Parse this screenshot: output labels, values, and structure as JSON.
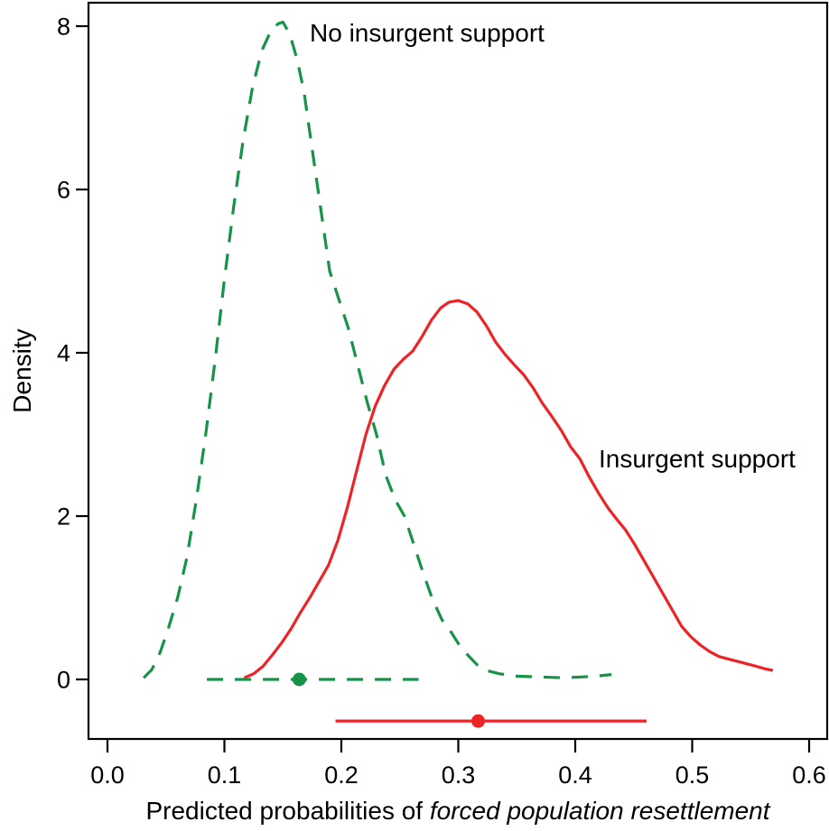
{
  "chart_data": {
    "type": "line",
    "subtype": "kernel-density",
    "title": "",
    "xlabel_prefix": "Predicted probabilities of ",
    "xlabel_italic": "forced population resettlement",
    "ylabel": "Density",
    "xlim": [
      -0.016,
      0.615
    ],
    "ylim": [
      -0.73,
      8.28
    ],
    "grid": false,
    "legend_position": "inline-curve-annotations",
    "x_ticks": [
      0.0,
      0.1,
      0.2,
      0.3,
      0.4,
      0.5,
      0.6
    ],
    "x_tick_labels": [
      "0.0",
      "0.1",
      "0.2",
      "0.3",
      "0.4",
      "0.5",
      "0.6"
    ],
    "y_ticks": [
      0,
      2,
      4,
      6,
      8
    ],
    "y_tick_labels": [
      "0",
      "2",
      "4",
      "6",
      "8"
    ],
    "axis_color": "#000000",
    "series": [
      {
        "name": "No insurgent support",
        "color": "#169347",
        "line_style": "dashed",
        "peak_x": 0.15,
        "peak_density": 8.05,
        "points": [
          [
            0.031,
            0.02
          ],
          [
            0.038,
            0.12
          ],
          [
            0.045,
            0.33
          ],
          [
            0.052,
            0.62
          ],
          [
            0.06,
            1.0
          ],
          [
            0.068,
            1.5
          ],
          [
            0.076,
            2.2
          ],
          [
            0.084,
            3.0
          ],
          [
            0.092,
            3.9
          ],
          [
            0.1,
            4.9
          ],
          [
            0.108,
            5.8
          ],
          [
            0.116,
            6.6
          ],
          [
            0.124,
            7.25
          ],
          [
            0.132,
            7.7
          ],
          [
            0.14,
            7.95
          ],
          [
            0.146,
            8.03
          ],
          [
            0.15,
            8.05
          ],
          [
            0.156,
            7.9
          ],
          [
            0.162,
            7.6
          ],
          [
            0.168,
            7.2
          ],
          [
            0.174,
            6.6
          ],
          [
            0.182,
            5.8
          ],
          [
            0.19,
            5.0
          ],
          [
            0.198,
            4.65
          ],
          [
            0.206,
            4.3
          ],
          [
            0.214,
            3.85
          ],
          [
            0.222,
            3.4
          ],
          [
            0.23,
            3.0
          ],
          [
            0.238,
            2.5
          ],
          [
            0.246,
            2.2
          ],
          [
            0.254,
            2.0
          ],
          [
            0.262,
            1.65
          ],
          [
            0.27,
            1.3
          ],
          [
            0.278,
            0.98
          ],
          [
            0.286,
            0.73
          ],
          [
            0.293,
            0.6
          ],
          [
            0.3,
            0.44
          ],
          [
            0.308,
            0.3
          ],
          [
            0.316,
            0.18
          ],
          [
            0.324,
            0.11
          ],
          [
            0.335,
            0.07
          ],
          [
            0.35,
            0.04
          ],
          [
            0.37,
            0.03
          ],
          [
            0.39,
            0.02
          ],
          [
            0.405,
            0.03
          ],
          [
            0.418,
            0.04
          ],
          [
            0.431,
            0.06
          ]
        ]
      },
      {
        "name": "Insurgent support",
        "color": "#ec2428",
        "line_style": "solid",
        "peak_x": 0.3,
        "peak_density": 4.64,
        "points": [
          [
            0.117,
            0.02
          ],
          [
            0.125,
            0.07
          ],
          [
            0.133,
            0.16
          ],
          [
            0.141,
            0.3
          ],
          [
            0.149,
            0.45
          ],
          [
            0.157,
            0.62
          ],
          [
            0.165,
            0.82
          ],
          [
            0.173,
            1.0
          ],
          [
            0.181,
            1.2
          ],
          [
            0.189,
            1.4
          ],
          [
            0.197,
            1.7
          ],
          [
            0.205,
            2.1
          ],
          [
            0.213,
            2.55
          ],
          [
            0.221,
            3.0
          ],
          [
            0.229,
            3.35
          ],
          [
            0.237,
            3.6
          ],
          [
            0.245,
            3.8
          ],
          [
            0.253,
            3.92
          ],
          [
            0.261,
            4.02
          ],
          [
            0.269,
            4.2
          ],
          [
            0.277,
            4.4
          ],
          [
            0.285,
            4.55
          ],
          [
            0.292,
            4.62
          ],
          [
            0.3,
            4.64
          ],
          [
            0.308,
            4.6
          ],
          [
            0.316,
            4.5
          ],
          [
            0.324,
            4.33
          ],
          [
            0.332,
            4.13
          ],
          [
            0.34,
            3.98
          ],
          [
            0.348,
            3.85
          ],
          [
            0.356,
            3.73
          ],
          [
            0.364,
            3.57
          ],
          [
            0.372,
            3.38
          ],
          [
            0.38,
            3.22
          ],
          [
            0.388,
            3.05
          ],
          [
            0.396,
            2.85
          ],
          [
            0.404,
            2.7
          ],
          [
            0.412,
            2.48
          ],
          [
            0.42,
            2.28
          ],
          [
            0.428,
            2.1
          ],
          [
            0.435,
            1.97
          ],
          [
            0.443,
            1.83
          ],
          [
            0.451,
            1.65
          ],
          [
            0.459,
            1.45
          ],
          [
            0.467,
            1.25
          ],
          [
            0.475,
            1.05
          ],
          [
            0.483,
            0.85
          ],
          [
            0.491,
            0.65
          ],
          [
            0.499,
            0.52
          ],
          [
            0.507,
            0.42
          ],
          [
            0.515,
            0.34
          ],
          [
            0.523,
            0.28
          ],
          [
            0.531,
            0.25
          ],
          [
            0.539,
            0.22
          ],
          [
            0.547,
            0.19
          ],
          [
            0.555,
            0.16
          ],
          [
            0.562,
            0.13
          ],
          [
            0.569,
            0.11
          ]
        ]
      }
    ],
    "intervals": [
      {
        "series": "No insurgent support",
        "color": "#169347",
        "line_style": "dashed",
        "from": 0.085,
        "to": 0.266,
        "point_estimate": 0.164,
        "y": 0.0
      },
      {
        "series": "Insurgent support",
        "color": "#ec2428",
        "line_style": "solid",
        "from": 0.195,
        "to": 0.461,
        "point_estimate": 0.317,
        "y": -0.51
      }
    ]
  }
}
